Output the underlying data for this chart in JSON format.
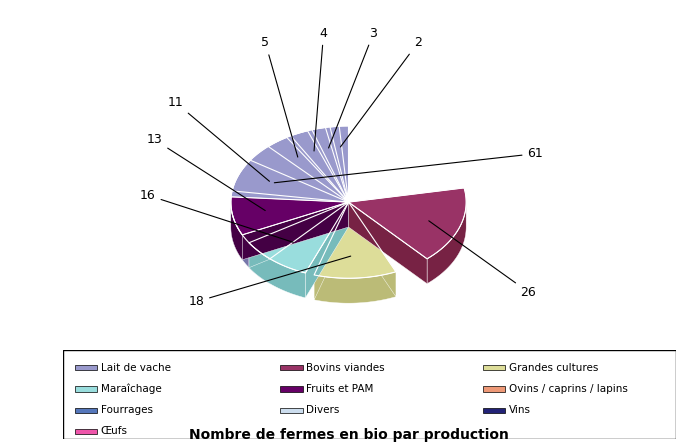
{
  "labels": [
    "Lait de vache",
    "Bovins viandes",
    "Grandes cultures",
    "Maraîchage",
    "Fruits et PAM",
    "Ovins / caprins / lapins",
    "Fourrages",
    "Divers",
    "Vins",
    "Œufs"
  ],
  "values": [
    61,
    26,
    18,
    16,
    13,
    11,
    5,
    4,
    3,
    2
  ],
  "colors_top": [
    "#9999cc",
    "#993366",
    "#dddd99",
    "#99dddd",
    "#660066",
    "#ee9977",
    "#5577bb",
    "#ccddee",
    "#222277",
    "#ee55aa"
  ],
  "colors_side": [
    "#7777aa",
    "#772244",
    "#bbbb77",
    "#77bbbb",
    "#440044",
    "#cc7755",
    "#3355aa",
    "#aabbcc",
    "#111155",
    "#cc3388"
  ],
  "title": "Nombre de fermes en bio par production",
  "legend_labels": [
    "Lait de vache",
    "Bovins viandes",
    "Grandes cultures",
    "Maraîchage",
    "Fruits et PAM",
    "Ovins / caprins / lapins",
    "Fourrages",
    "Divers",
    "Vins",
    "Œufs"
  ],
  "label_values": [
    61,
    26,
    18,
    16,
    13,
    11,
    5,
    4,
    3,
    2
  ]
}
